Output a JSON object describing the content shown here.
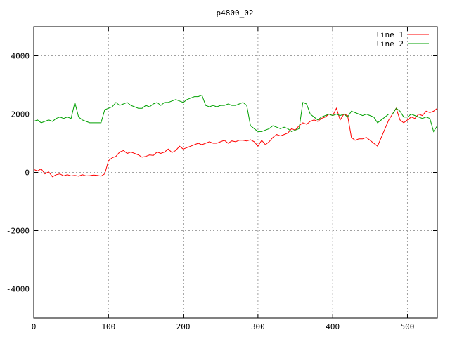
{
  "chart_data": {
    "type": "line",
    "title": "p4800_02",
    "xlabel": "",
    "ylabel": "",
    "xlim": [
      0,
      540
    ],
    "ylim": [
      -5000,
      5000
    ],
    "xticks": [
      0,
      100,
      200,
      300,
      400,
      500
    ],
    "yticks": [
      -4000,
      -2000,
      0,
      2000,
      4000
    ],
    "grid": true,
    "legend_position": "top-right",
    "series": [
      {
        "name": "line 1",
        "color": "#ff0000",
        "x": [
          0,
          5,
          10,
          15,
          20,
          25,
          30,
          35,
          40,
          45,
          50,
          55,
          60,
          65,
          70,
          75,
          80,
          85,
          90,
          95,
          100,
          105,
          110,
          115,
          120,
          125,
          130,
          135,
          140,
          145,
          150,
          155,
          160,
          165,
          170,
          175,
          180,
          185,
          190,
          195,
          200,
          205,
          210,
          215,
          220,
          225,
          230,
          235,
          240,
          245,
          250,
          255,
          260,
          265,
          270,
          275,
          280,
          285,
          290,
          295,
          300,
          305,
          310,
          315,
          320,
          325,
          330,
          335,
          340,
          345,
          350,
          355,
          360,
          365,
          370,
          375,
          380,
          385,
          390,
          395,
          400,
          405,
          410,
          415,
          420,
          425,
          430,
          435,
          440,
          445,
          450,
          455,
          460,
          465,
          470,
          475,
          480,
          485,
          490,
          495,
          500,
          505,
          510,
          515,
          520,
          525,
          530,
          535,
          540
        ],
        "y": [
          100,
          50,
          120,
          -50,
          20,
          -150,
          -80,
          -50,
          -120,
          -80,
          -120,
          -100,
          -130,
          -80,
          -120,
          -110,
          -90,
          -100,
          -130,
          -50,
          400,
          500,
          550,
          700,
          750,
          650,
          700,
          650,
          600,
          520,
          550,
          600,
          580,
          700,
          650,
          700,
          800,
          680,
          750,
          900,
          800,
          850,
          900,
          950,
          1000,
          950,
          1000,
          1050,
          1000,
          1000,
          1050,
          1100,
          1000,
          1080,
          1050,
          1100,
          1100,
          1080,
          1120,
          1050,
          900,
          1100,
          950,
          1050,
          1200,
          1300,
          1250,
          1300,
          1350,
          1500,
          1450,
          1600,
          1700,
          1650,
          1750,
          1800,
          1750,
          1850,
          1900,
          2000,
          1950,
          2200,
          1800,
          2000,
          1950,
          1200,
          1100,
          1150,
          1150,
          1200,
          1100,
          1000,
          900,
          1200,
          1500,
          1800,
          2000,
          2200,
          1800,
          1700,
          1800,
          1900,
          1850,
          2000,
          1950,
          2100,
          2050,
          2100,
          2200
        ]
      },
      {
        "name": "line 2",
        "color": "#00a000",
        "x": [
          0,
          5,
          10,
          15,
          20,
          25,
          30,
          35,
          40,
          45,
          50,
          55,
          60,
          65,
          70,
          75,
          80,
          85,
          90,
          95,
          100,
          105,
          110,
          115,
          120,
          125,
          130,
          135,
          140,
          145,
          150,
          155,
          160,
          165,
          170,
          175,
          180,
          185,
          190,
          195,
          200,
          205,
          210,
          215,
          220,
          225,
          230,
          235,
          240,
          245,
          250,
          255,
          260,
          265,
          270,
          275,
          280,
          285,
          290,
          295,
          300,
          305,
          310,
          315,
          320,
          325,
          330,
          335,
          340,
          345,
          350,
          355,
          360,
          365,
          370,
          375,
          380,
          385,
          390,
          395,
          400,
          405,
          410,
          415,
          420,
          425,
          430,
          435,
          440,
          445,
          450,
          455,
          460,
          465,
          470,
          475,
          480,
          485,
          490,
          495,
          500,
          505,
          510,
          515,
          520,
          525,
          530,
          535,
          540
        ],
        "y": [
          1750,
          1800,
          1700,
          1750,
          1800,
          1750,
          1850,
          1900,
          1850,
          1900,
          1850,
          2400,
          1900,
          1800,
          1750,
          1700,
          1700,
          1700,
          1700,
          2150,
          2200,
          2250,
          2400,
          2300,
          2350,
          2400,
          2300,
          2250,
          2200,
          2200,
          2300,
          2250,
          2350,
          2400,
          2300,
          2400,
          2400,
          2450,
          2500,
          2450,
          2400,
          2500,
          2550,
          2600,
          2600,
          2650,
          2300,
          2250,
          2300,
          2250,
          2300,
          2300,
          2350,
          2300,
          2300,
          2350,
          2400,
          2300,
          1600,
          1500,
          1400,
          1400,
          1450,
          1500,
          1600,
          1550,
          1500,
          1550,
          1500,
          1400,
          1450,
          1500,
          2400,
          2350,
          2000,
          1900,
          1800,
          1900,
          1950,
          2000,
          1950,
          2000,
          1950,
          2000,
          1900,
          2100,
          2050,
          2000,
          1950,
          2000,
          1950,
          1900,
          1700,
          1800,
          1900,
          2000,
          2000,
          2200,
          2100,
          1900,
          1900,
          2000,
          1950,
          1900,
          1850,
          1900,
          1850,
          1400,
          1600
        ]
      }
    ]
  }
}
